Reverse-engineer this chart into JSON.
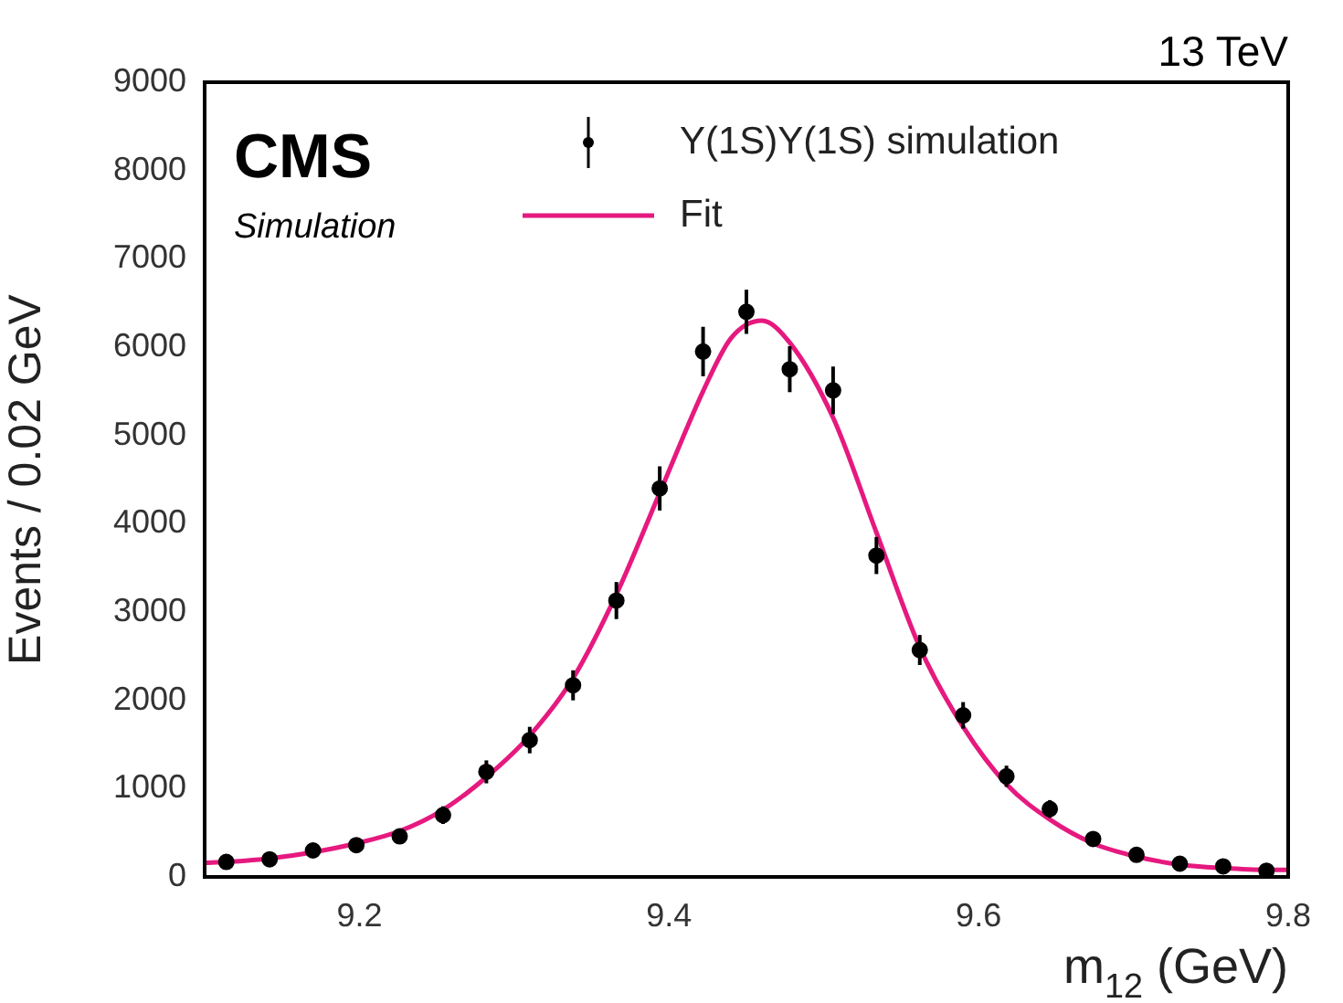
{
  "chart_data": {
    "type": "scatter",
    "xlabel": "m$_{12}$ (GeV)",
    "ylabel": "Events / 0.02 GeV",
    "annotations": [
      "CMS",
      "Simulation",
      "13 TeV"
    ],
    "xlim": [
      9.1,
      9.8
    ],
    "xticks": [
      9.2,
      9.4,
      9.6,
      9.8
    ],
    "ylim": [
      0,
      9000
    ],
    "yticks": [
      0,
      1000,
      2000,
      3000,
      4000,
      5000,
      6000,
      7000,
      8000,
      9000
    ],
    "grid": false,
    "legend": "top",
    "series": [
      {
        "name": "Υ(1S)Υ(1S) simulation",
        "color": "#000000",
        "marker": "circle",
        "x": [
          9.114,
          9.142,
          9.17,
          9.198,
          9.226,
          9.254,
          9.282,
          9.31,
          9.338,
          9.366,
          9.394,
          9.422,
          9.45,
          9.478,
          9.506,
          9.534,
          9.562,
          9.59,
          9.618,
          9.646,
          9.674,
          9.702,
          9.73,
          9.758,
          9.786
        ],
        "values": [
          170,
          200,
          300,
          360,
          460,
          700,
          1190,
          1550,
          2170,
          3130,
          4400,
          5950,
          6400,
          5750,
          5510,
          3640,
          2570,
          1830,
          1140,
          770,
          430,
          250,
          150,
          120,
          70
        ],
        "errors": [
          50,
          50,
          60,
          70,
          80,
          100,
          130,
          150,
          170,
          210,
          250,
          280,
          250,
          260,
          270,
          210,
          170,
          150,
          120,
          100,
          70,
          60,
          50,
          40,
          30
        ]
      },
      {
        "name": "Fit",
        "type": "line",
        "color": "#e6197f",
        "marker": "none",
        "line_style": "solid",
        "x": [
          9.1,
          9.114,
          9.142,
          9.17,
          9.198,
          9.226,
          9.254,
          9.282,
          9.31,
          9.338,
          9.366,
          9.394,
          9.422,
          9.44,
          9.46,
          9.478,
          9.506,
          9.534,
          9.562,
          9.59,
          9.618,
          9.646,
          9.674,
          9.702,
          9.73,
          9.758,
          9.786,
          9.8
        ],
        "values": [
          160,
          170,
          210,
          280,
          380,
          520,
          760,
          1130,
          1600,
          2250,
          3200,
          4350,
          5500,
          6100,
          6300,
          6050,
          5200,
          3900,
          2600,
          1700,
          1050,
          650,
          380,
          230,
          140,
          100,
          80,
          80
        ]
      }
    ]
  }
}
